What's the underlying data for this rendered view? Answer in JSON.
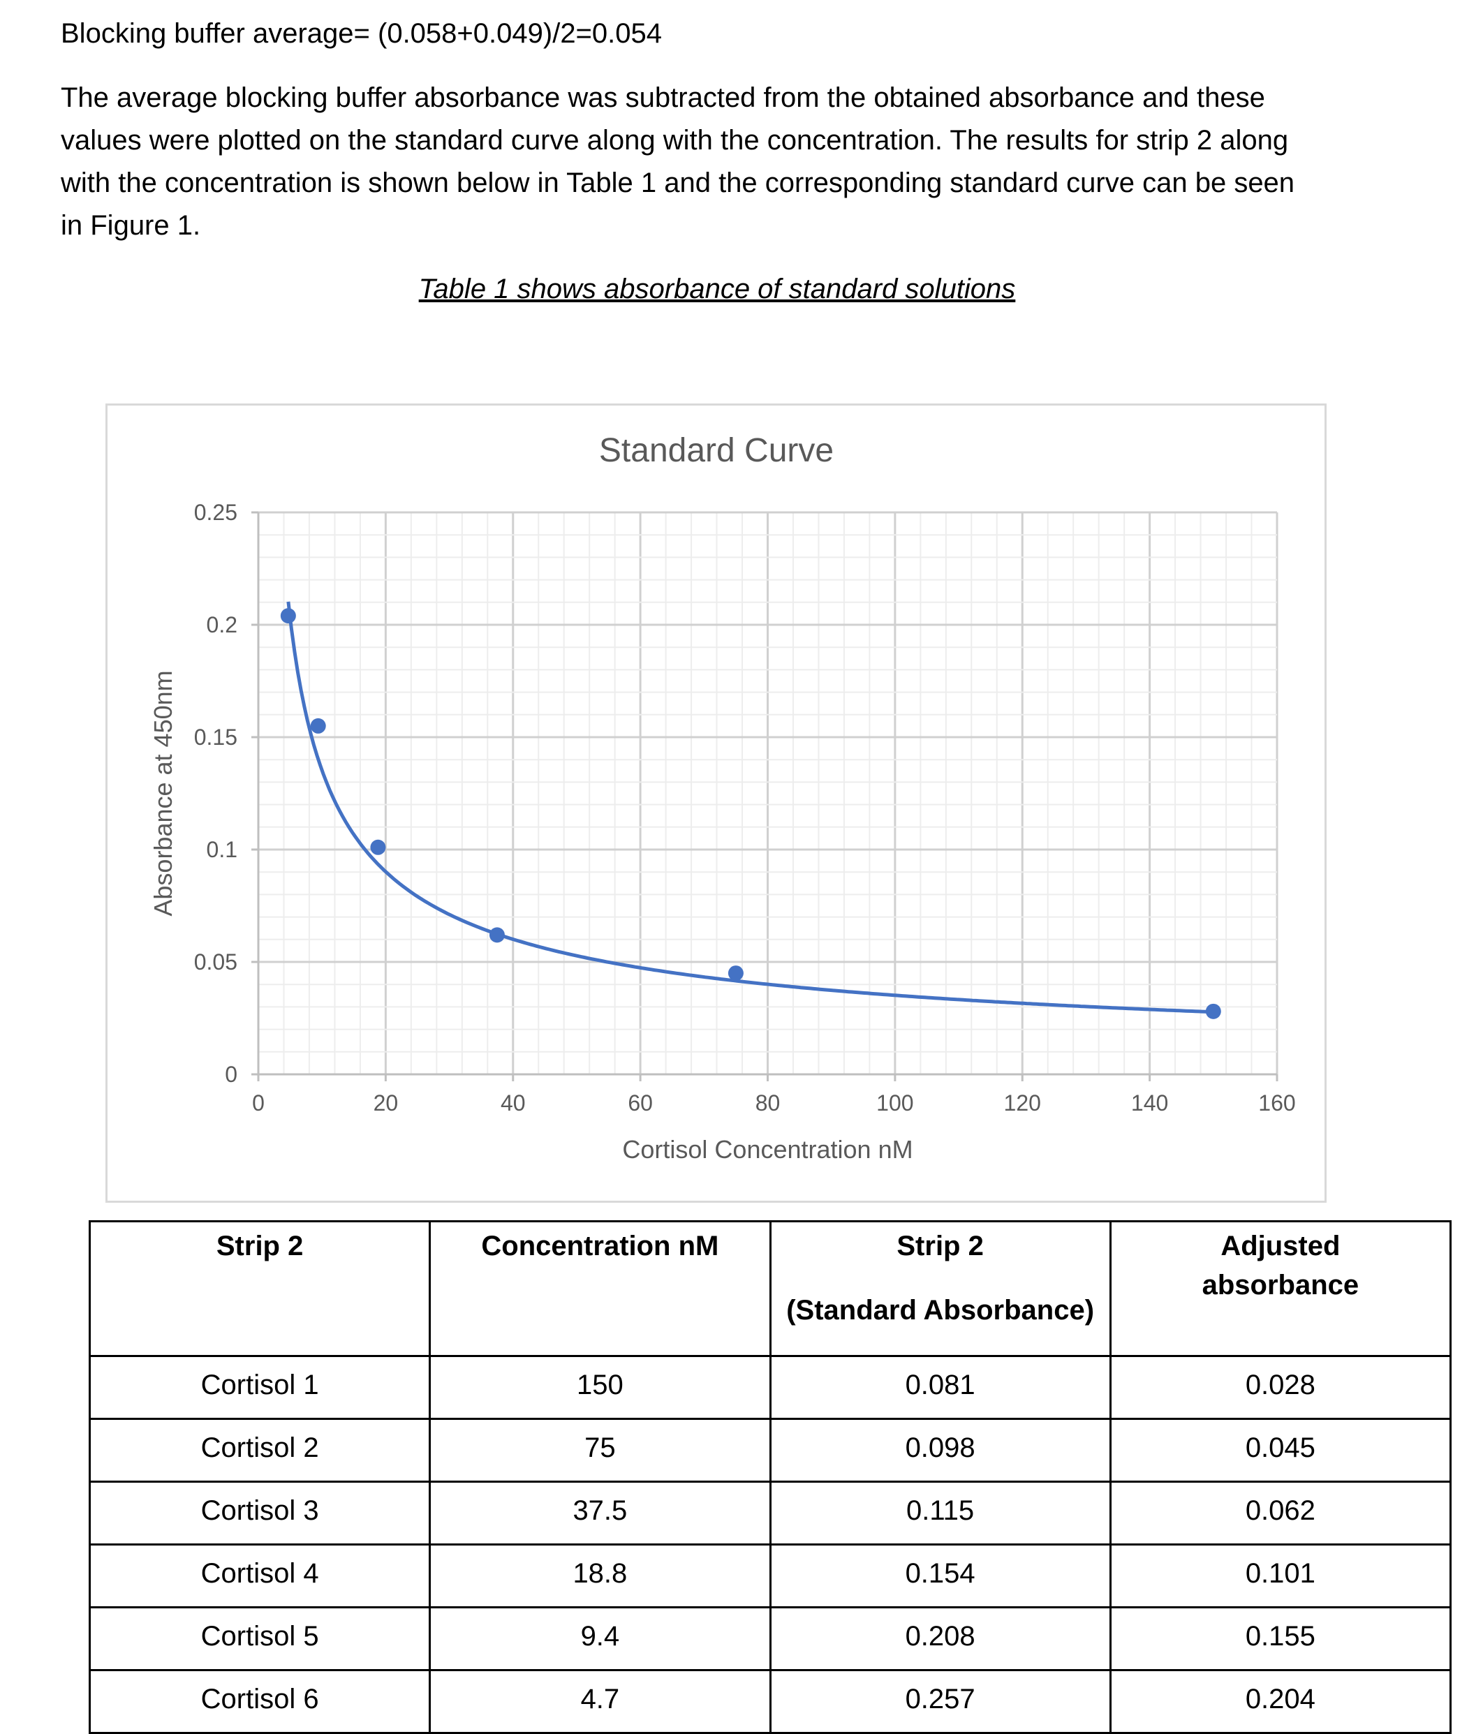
{
  "text": {
    "line1": "Blocking buffer average= (0.058+0.049)/2=0.054",
    "paragraph": [
      "The average blocking buffer absorbance was subtracted from the obtained absorbance and these",
      "values were plotted on the standard curve along with the concentration. The results for strip 2 along",
      "with the concentration is shown below in Table 1 and the corresponding standard curve can be seen",
      "in Figure 1."
    ],
    "caption": "Table 1 shows absorbance of standard solutions"
  },
  "chart_data": {
    "type": "scatter",
    "title": "Standard Curve",
    "xlabel": "Cortisol Concentration nM",
    "ylabel": "Absorbance at 450nm",
    "xlim": [
      0,
      160
    ],
    "ylim": [
      0,
      0.25
    ],
    "x_ticks": [
      "0",
      "20",
      "40",
      "60",
      "80",
      "100",
      "120",
      "140",
      "160"
    ],
    "y_ticks": [
      "0",
      "0.05",
      "0.1",
      "0.15",
      "0.2",
      "0.25"
    ],
    "grid": "major and minor",
    "trendline": "power",
    "marker_color": "#4472c4",
    "points": [
      {
        "x": 150,
        "y": 0.028
      },
      {
        "x": 75,
        "y": 0.045
      },
      {
        "x": 37.5,
        "y": 0.062
      },
      {
        "x": 18.8,
        "y": 0.101
      },
      {
        "x": 9.4,
        "y": 0.155
      },
      {
        "x": 4.7,
        "y": 0.204
      }
    ]
  },
  "table": {
    "headers": [
      "Strip 2",
      "Concentration nM",
      "Strip 2",
      "Adjusted absorbance"
    ],
    "header_sub": "(Standard Absorbance)",
    "rows": [
      [
        "Cortisol 1",
        "150",
        "0.081",
        "0.028"
      ],
      [
        "Cortisol 2",
        "75",
        "0.098",
        "0.045"
      ],
      [
        "Cortisol 3",
        "37.5",
        "0.115",
        "0.062"
      ],
      [
        "Cortisol 4",
        "18.8",
        "0.154",
        "0.101"
      ],
      [
        "Cortisol 5",
        "9.4",
        "0.208",
        "0.155"
      ],
      [
        "Cortisol 6",
        "4.7",
        "0.257",
        "0.204"
      ]
    ]
  }
}
